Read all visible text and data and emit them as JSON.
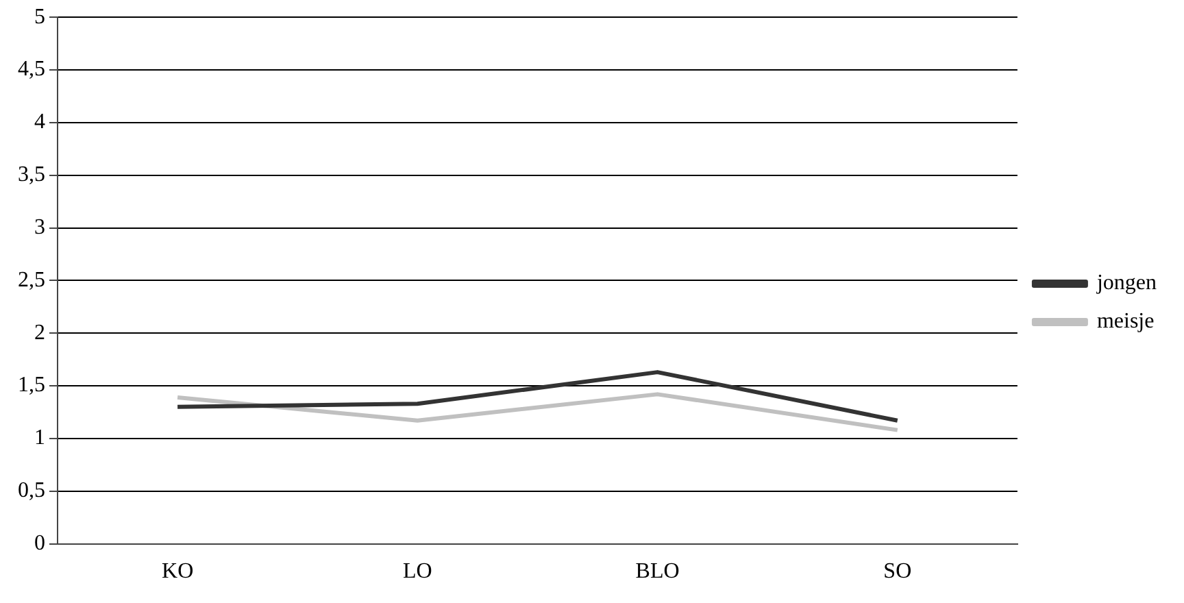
{
  "chart_data": {
    "type": "line",
    "categories": [
      "KO",
      "LO",
      "BLO",
      "SO"
    ],
    "series": [
      {
        "name": "jongen",
        "color": "#333333",
        "values": [
          1.3,
          1.33,
          1.63,
          1.17
        ]
      },
      {
        "name": "meisje",
        "color": "#c0c0c0",
        "values": [
          1.39,
          1.17,
          1.42,
          1.08
        ]
      }
    ],
    "ylim": [
      0,
      5
    ],
    "yticks": [
      0,
      {
        "value": 0.5,
        "label": "0,5"
      },
      1,
      {
        "value": 1.5,
        "label": "1,5"
      },
      2,
      {
        "value": 2.5,
        "label": "2,5"
      },
      3,
      {
        "value": 3.5,
        "label": "3,5"
      },
      4,
      {
        "value": 4.5,
        "label": "4,5"
      },
      5
    ],
    "grid": "y",
    "legend": "right",
    "marker": "none",
    "line_style": "solid"
  }
}
